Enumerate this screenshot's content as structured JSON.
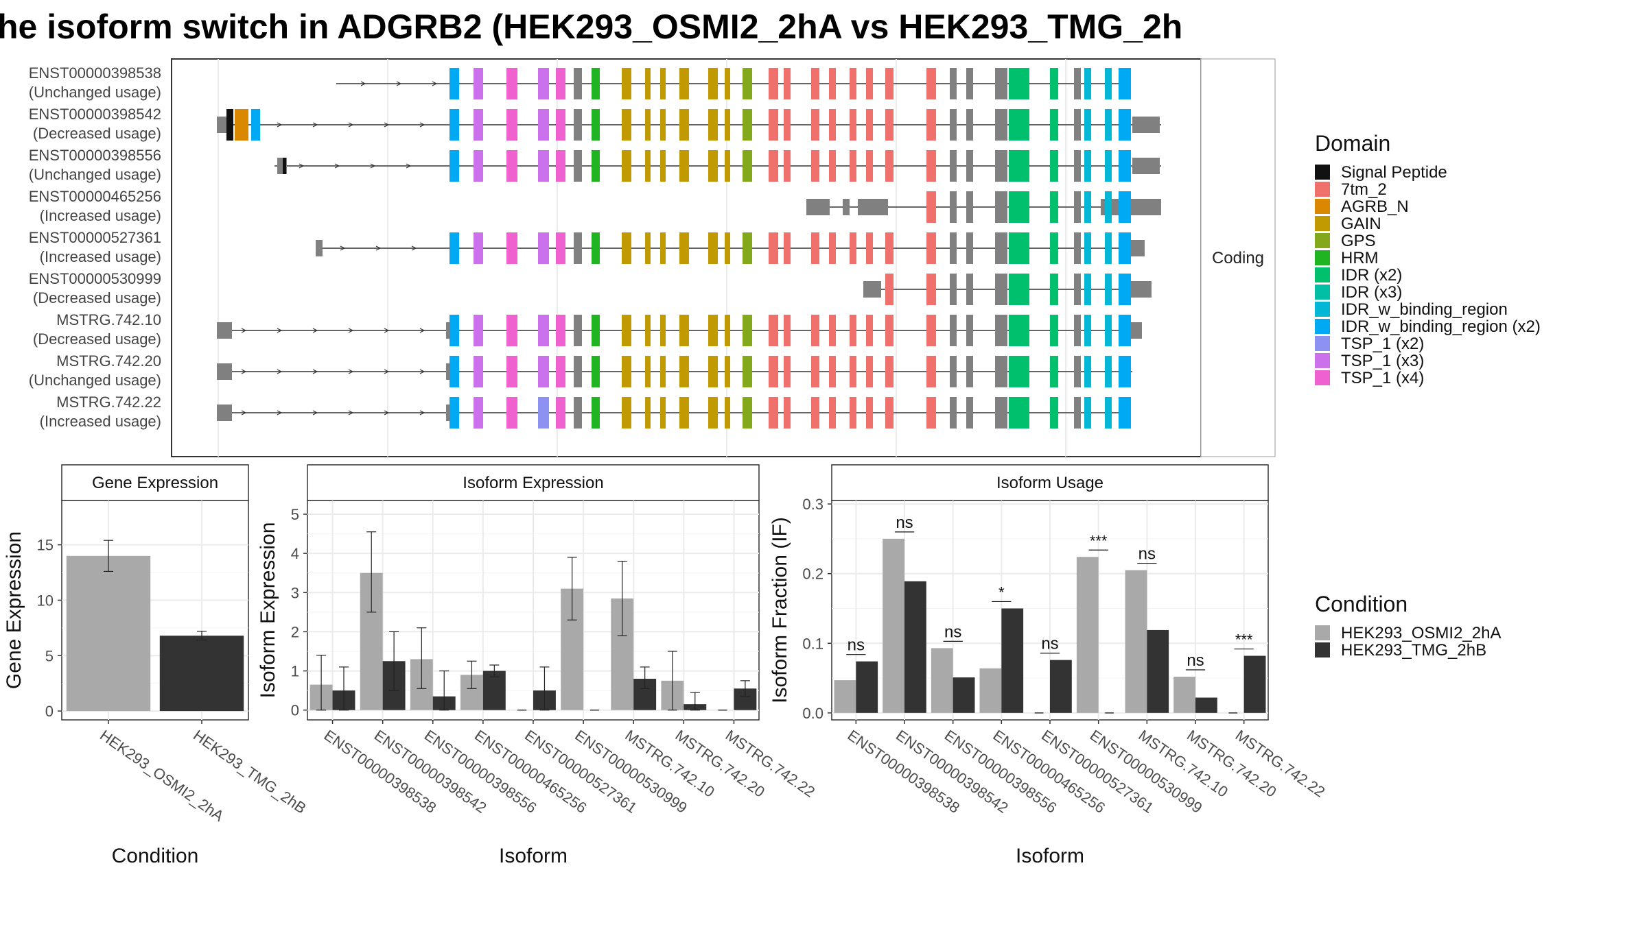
{
  "title": "he isoform switch in ADGRB2 (HEK293_OSMI2_2hA vs HEK293_TMG_2h",
  "colors": {
    "condA": "#a9a9a9",
    "condB": "#333333",
    "noncoding": "#808080",
    "domains": {
      "Signal Peptide": "#111111",
      "7tm_2": "#f0716b",
      "AGRB_N": "#d98800",
      "GAIN": "#c09a00",
      "GPS": "#84a81c",
      "HRM": "#21b422",
      "IDR (x2)": "#00c06e",
      "IDR (x3)": "#00bfa5",
      "IDR_w_binding_region": "#00b8d6",
      "IDR_w_binding_region (x2)": "#00a9f4",
      "TSP_1 (x2)": "#8d92f2",
      "TSP_1 (x3)": "#cc71ec",
      "TSP_1 (x4)": "#f061d0"
    }
  },
  "legends": {
    "domain_title": "Domain",
    "domain_items": [
      "Signal Peptide",
      "7tm_2",
      "AGRB_N",
      "GAIN",
      "GPS",
      "HRM",
      "IDR (x2)",
      "IDR (x3)",
      "IDR_w_binding_region",
      "IDR_w_binding_region (x2)",
      "TSP_1 (x2)",
      "TSP_1 (x3)",
      "TSP_1 (x4)"
    ],
    "condition_title": "Condition",
    "condition_items": [
      "HEK293_OSMI2_2hA",
      "HEK293_TMG_2hB"
    ]
  },
  "chart_data": [
    {
      "type": "gene-structure",
      "strip_label": "Coding",
      "transcripts": [
        {
          "name": "ENST00000398538",
          "usage": "(Unchanged usage)"
        },
        {
          "name": "ENST00000398542",
          "usage": "(Decreased usage)"
        },
        {
          "name": "ENST00000398556",
          "usage": "(Unchanged usage)"
        },
        {
          "name": "ENST00000465256",
          "usage": "(Increased usage)"
        },
        {
          "name": "ENST00000527361",
          "usage": "(Increased usage)"
        },
        {
          "name": "ENST00000530999",
          "usage": "(Decreased usage)"
        },
        {
          "name": "MSTRG.742.10",
          "usage": "(Decreased usage)"
        },
        {
          "name": "MSTRG.742.20",
          "usage": "(Unchanged usage)"
        },
        {
          "name": "MSTRG.742.22",
          "usage": "(Increased usage)"
        }
      ]
    },
    {
      "type": "bar",
      "panel_title": "Gene Expression",
      "xlabel": "Condition",
      "ylabel": "Gene Expression",
      "categories": [
        "HEK293_OSMI2_2hA",
        "HEK293_TMG_2hB"
      ],
      "values": [
        14.0,
        6.8
      ],
      "error_low": [
        12.6,
        6.4
      ],
      "error_high": [
        15.4,
        7.2
      ],
      "ylim": [
        -0.8,
        19.0
      ],
      "yticks": [
        0,
        5,
        10,
        15
      ]
    },
    {
      "type": "bar",
      "panel_title": "Isoform Expression",
      "xlabel": "Isoform",
      "ylabel": "Isoform Expression",
      "categories": [
        "ENST00000398538",
        "ENST00000398542",
        "ENST00000398556",
        "ENST00000465256",
        "ENST00000527361",
        "ENST00000530999",
        "MSTRG.742.10",
        "MSTRG.742.20",
        "MSTRG.742.22"
      ],
      "series": [
        {
          "name": "HEK293_OSMI2_2hA",
          "values": [
            0.65,
            3.5,
            1.3,
            0.9,
            0.0,
            3.1,
            2.85,
            0.75,
            0.0
          ],
          "error_low": [
            0.0,
            2.5,
            0.55,
            0.55,
            null,
            2.3,
            1.9,
            0.0,
            null
          ],
          "error_high": [
            1.4,
            4.55,
            2.1,
            1.25,
            null,
            3.9,
            3.8,
            1.5,
            null
          ]
        },
        {
          "name": "HEK293_TMG_2hB",
          "values": [
            0.5,
            1.25,
            0.35,
            1.0,
            0.5,
            0.0,
            0.8,
            0.15,
            0.55
          ],
          "error_low": [
            0.0,
            0.5,
            0.0,
            0.85,
            0.0,
            null,
            0.55,
            0.0,
            0.35
          ],
          "error_high": [
            1.1,
            2.0,
            1.0,
            1.15,
            1.1,
            null,
            1.1,
            0.45,
            0.75
          ]
        }
      ],
      "ylim": [
        -0.25,
        5.35
      ],
      "yticks": [
        0,
        1,
        2,
        3,
        4,
        5
      ]
    },
    {
      "type": "bar",
      "panel_title": "Isoform Usage",
      "xlabel": "Isoform",
      "ylabel": "Isoform Fraction (IF)",
      "categories": [
        "ENST00000398538",
        "ENST00000398542",
        "ENST00000398556",
        "ENST00000465256",
        "ENST00000527361",
        "ENST00000530999",
        "MSTRG.742.10",
        "MSTRG.742.20",
        "MSTRG.742.22"
      ],
      "series": [
        {
          "name": "HEK293_OSMI2_2hA",
          "values": [
            0.047,
            0.25,
            0.093,
            0.064,
            0.0,
            0.224,
            0.205,
            0.052,
            0.0
          ]
        },
        {
          "name": "HEK293_TMG_2hB",
          "values": [
            0.074,
            0.189,
            0.051,
            0.15,
            0.076,
            0.0,
            0.119,
            0.022,
            0.082
          ]
        }
      ],
      "significance": [
        "ns",
        "ns",
        "ns",
        "*",
        "ns",
        "***",
        "ns",
        "ns",
        "***"
      ],
      "ylim": [
        -0.01,
        0.305
      ],
      "yticks": [
        0.0,
        0.1,
        0.2,
        0.3
      ],
      "ytick_labels": [
        "0.0",
        "0.1",
        "0.2",
        "0.3"
      ]
    }
  ]
}
